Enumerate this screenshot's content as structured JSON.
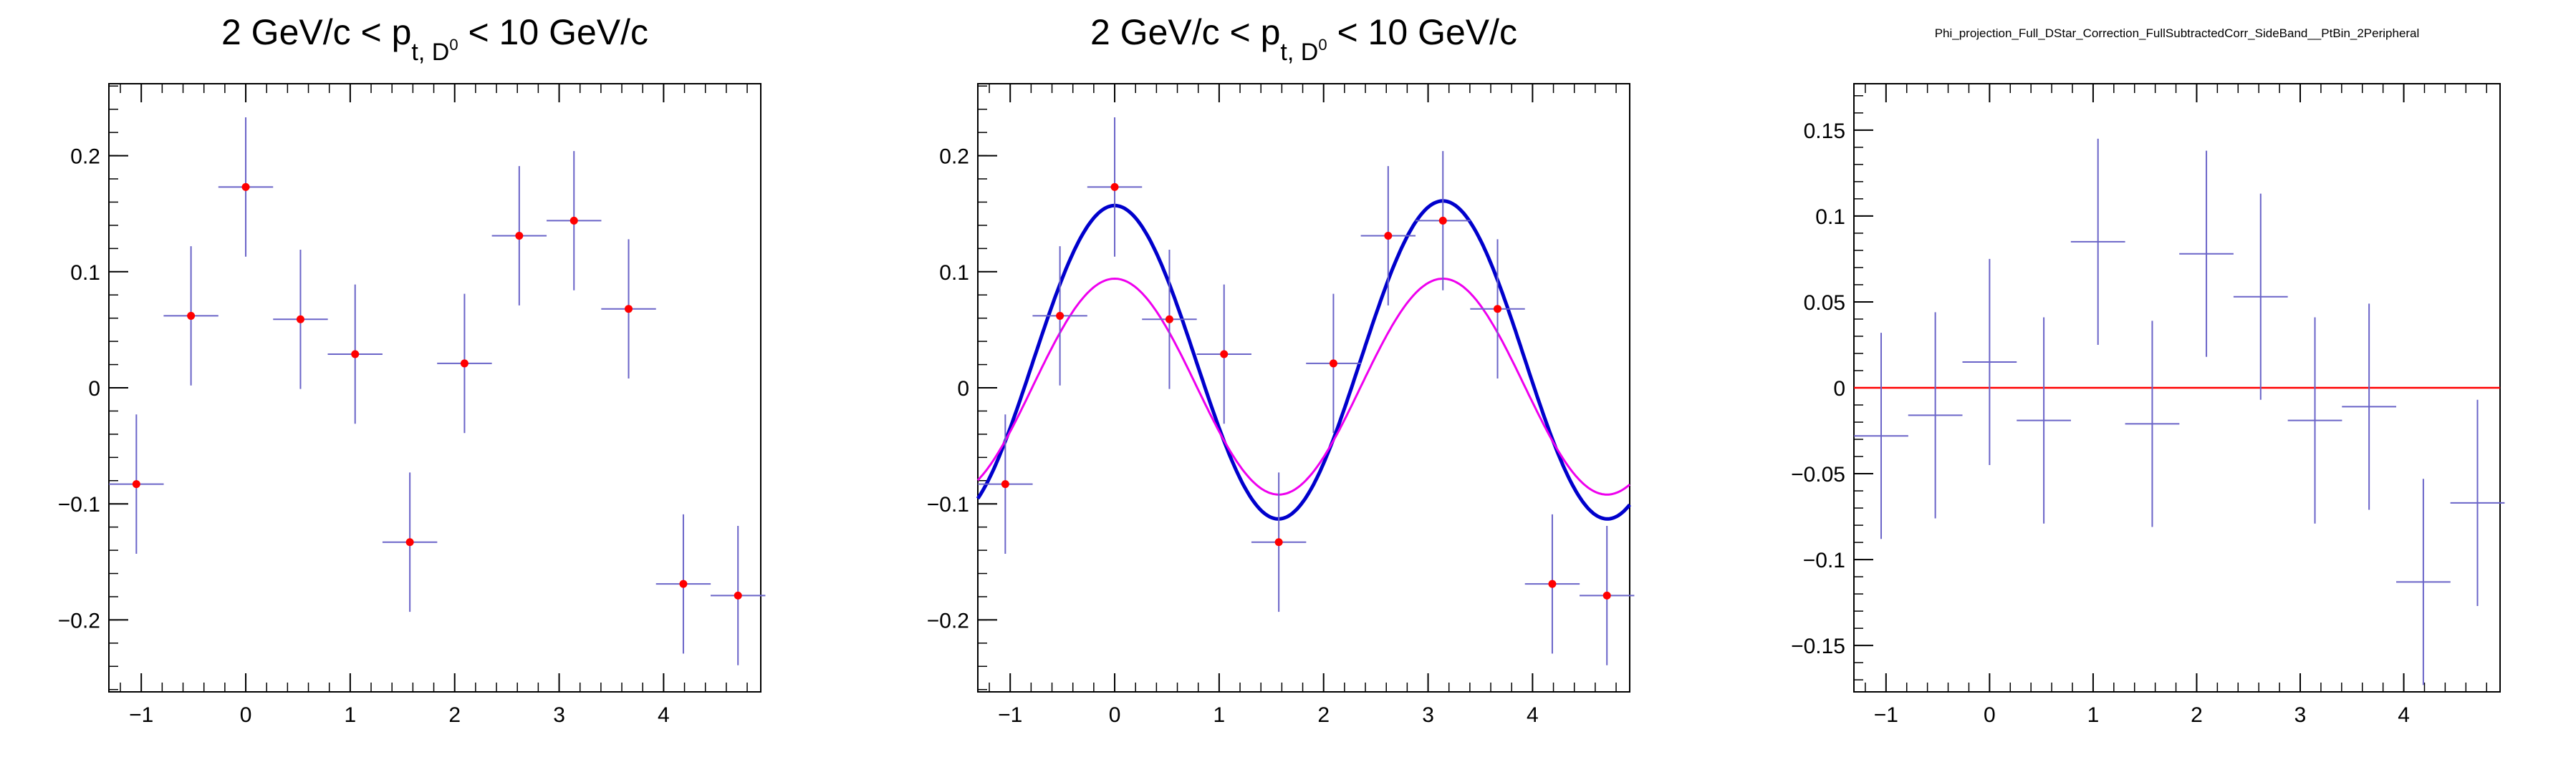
{
  "chart_data": [
    {
      "type": "scatter",
      "title": {
        "pre": "2 GeV/c < p",
        "sub": "t, D",
        "sup": "0",
        "post": " < 10 GeV/c"
      },
      "xlim": [
        -1.31,
        4.93
      ],
      "ylim": [
        -0.262,
        0.262
      ],
      "xticks": [
        -1,
        0,
        1,
        2,
        3,
        4
      ],
      "xtick_labels": [
        "−1",
        "0",
        "1",
        "2",
        "3",
        "4"
      ],
      "yticks": [
        -0.2,
        -0.1,
        0,
        0.1,
        0.2
      ],
      "ytick_labels": [
        "−0.2",
        "−0.1",
        "0",
        "0.1",
        "0.2"
      ],
      "grid": false,
      "points": [
        {
          "x": -1.047,
          "y": -0.083,
          "err": 0.06
        },
        {
          "x": -0.524,
          "y": 0.062,
          "err": 0.06
        },
        {
          "x": 0.0,
          "y": 0.173,
          "err": 0.06
        },
        {
          "x": 0.524,
          "y": 0.059,
          "err": 0.06
        },
        {
          "x": 1.047,
          "y": 0.029,
          "err": 0.06
        },
        {
          "x": 1.571,
          "y": -0.133,
          "err": 0.06
        },
        {
          "x": 2.094,
          "y": 0.021,
          "err": 0.06
        },
        {
          "x": 2.618,
          "y": 0.131,
          "err": 0.06
        },
        {
          "x": 3.142,
          "y": 0.144,
          "err": 0.06
        },
        {
          "x": 3.665,
          "y": 0.068,
          "err": 0.06
        },
        {
          "x": 4.189,
          "y": -0.169,
          "err": 0.06
        },
        {
          "x": 4.712,
          "y": -0.179,
          "err": 0.06
        }
      ],
      "bin_half_width": 0.262,
      "colors": {
        "marker": "#ff0000",
        "error": "#6a64c8"
      }
    },
    {
      "type": "scatter",
      "title": {
        "pre": "2 GeV/c < p",
        "sub": "t, D",
        "sup": "0",
        "post": " < 10 GeV/c"
      },
      "xlim": [
        -1.31,
        4.93
      ],
      "ylim": [
        -0.262,
        0.262
      ],
      "xticks": [
        -1,
        0,
        1,
        2,
        3,
        4
      ],
      "xtick_labels": [
        "−1",
        "0",
        "1",
        "2",
        "3",
        "4"
      ],
      "yticks": [
        -0.2,
        -0.1,
        0,
        0.1,
        0.2
      ],
      "ytick_labels": [
        "−0.2",
        "−0.1",
        "0",
        "0.1",
        "0.2"
      ],
      "grid": false,
      "points": [
        {
          "x": -1.047,
          "y": -0.083,
          "err": 0.06
        },
        {
          "x": -0.524,
          "y": 0.062,
          "err": 0.06
        },
        {
          "x": 0.0,
          "y": 0.173,
          "err": 0.06
        },
        {
          "x": 0.524,
          "y": 0.059,
          "err": 0.06
        },
        {
          "x": 1.047,
          "y": 0.029,
          "err": 0.06
        },
        {
          "x": 1.571,
          "y": -0.133,
          "err": 0.06
        },
        {
          "x": 2.094,
          "y": 0.021,
          "err": 0.06
        },
        {
          "x": 2.618,
          "y": 0.131,
          "err": 0.06
        },
        {
          "x": 3.142,
          "y": 0.144,
          "err": 0.06
        },
        {
          "x": 3.665,
          "y": 0.068,
          "err": 0.06
        },
        {
          "x": 4.189,
          "y": -0.169,
          "err": 0.06
        },
        {
          "x": 4.712,
          "y": -0.179,
          "err": 0.06
        }
      ],
      "bin_half_width": 0.262,
      "curves": [
        {
          "form": "a + b*cos(2x) + c*cos(x)",
          "a": 0.023,
          "b": 0.136,
          "c": -0.002,
          "color": "#0000cc"
        },
        {
          "form": "a + b*cos(2x)",
          "a": 0.001,
          "b": 0.093,
          "color": "#ee00ee"
        }
      ],
      "colors": {
        "marker": "#ff0000",
        "error": "#6a64c8"
      }
    },
    {
      "type": "scatter",
      "title": "Phi_projection_Full_DStar_Correction_FullSubtractedCorr_SideBand__PtBin_2Peripheral",
      "xlim": [
        -1.31,
        4.93
      ],
      "ylim": [
        -0.177,
        0.177
      ],
      "xticks": [
        -1,
        0,
        1,
        2,
        3,
        4
      ],
      "xtick_labels": [
        "−1",
        "0",
        "1",
        "2",
        "3",
        "4"
      ],
      "yticks": [
        -0.15,
        -0.1,
        -0.05,
        0,
        0.05,
        0.1,
        0.15
      ],
      "ytick_labels": [
        "−0.15",
        "−0.1",
        "−0.05",
        "0",
        "0.05",
        "0.1",
        "0.15"
      ],
      "grid": false,
      "points": [
        {
          "x": -1.047,
          "y": -0.028,
          "err": 0.06
        },
        {
          "x": -0.524,
          "y": -0.016,
          "err": 0.06
        },
        {
          "x": 0.0,
          "y": 0.015,
          "err": 0.06
        },
        {
          "x": 0.524,
          "y": -0.019,
          "err": 0.06
        },
        {
          "x": 1.047,
          "y": 0.085,
          "err": 0.06
        },
        {
          "x": 1.571,
          "y": -0.021,
          "err": 0.06
        },
        {
          "x": 2.094,
          "y": 0.078,
          "err": 0.06
        },
        {
          "x": 2.618,
          "y": 0.053,
          "err": 0.06
        },
        {
          "x": 3.142,
          "y": -0.019,
          "err": 0.06
        },
        {
          "x": 3.665,
          "y": -0.011,
          "err": 0.06
        },
        {
          "x": 4.189,
          "y": -0.113,
          "err": 0.06
        },
        {
          "x": 4.712,
          "y": -0.067,
          "err": 0.06
        }
      ],
      "bin_half_width": 0.262,
      "reference_line": {
        "y": 0,
        "color": "#ff0000"
      },
      "colors": {
        "error": "#6a64c8"
      }
    }
  ]
}
